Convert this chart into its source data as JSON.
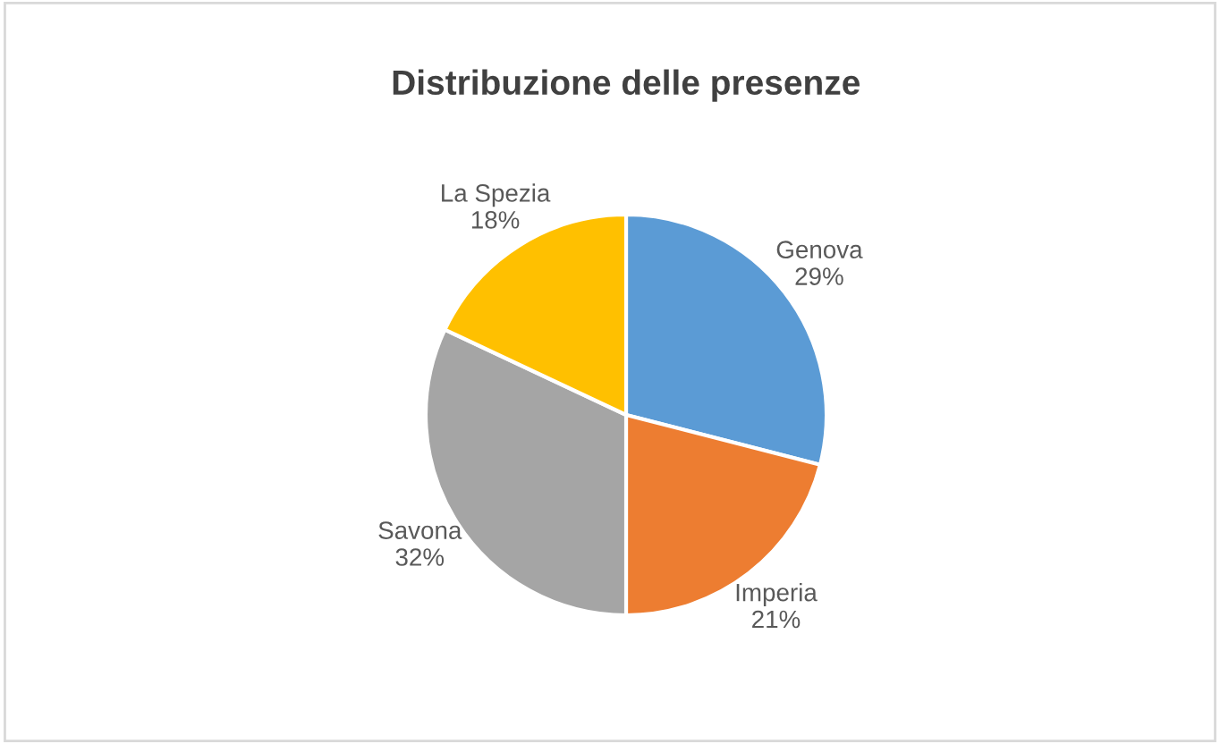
{
  "chart_data": {
    "type": "pie",
    "title": "Distribuzione delle presenze",
    "categories": [
      "Genova",
      "Imperia",
      "Savona",
      "La Spezia"
    ],
    "values": [
      29,
      21,
      32,
      18
    ],
    "value_labels": [
      "29%",
      "21%",
      "32%",
      "18%"
    ],
    "colors": [
      "#5b9bd5",
      "#ed7d31",
      "#a5a5a5",
      "#ffc000"
    ],
    "legend": false
  }
}
